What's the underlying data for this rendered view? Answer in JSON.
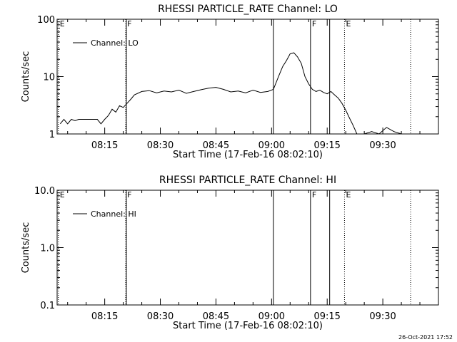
{
  "footer": {
    "stamp": "26-Oct-2021 17:52"
  },
  "chart_data": [
    {
      "type": "line",
      "title": "RHESSI PARTICLE_RATE Channel: LO",
      "xlabel": "Start Time (17-Feb-16 08:02:10)",
      "ylabel": "Counts/sec",
      "yscale": "log",
      "ylim": [
        1,
        100
      ],
      "yticks": [
        {
          "v": 1,
          "label": "1"
        },
        {
          "v": 10,
          "label": "10"
        },
        {
          "v": 100,
          "label": "100"
        }
      ],
      "xlim": [
        "08:02:10",
        "09:45:00"
      ],
      "xticks": [
        "08:15",
        "08:30",
        "08:45",
        "09:00",
        "09:15",
        "09:30"
      ],
      "legend": {
        "position": "top-left",
        "entry": "Channel: LO"
      },
      "markers": [
        {
          "t": "08:02:30",
          "label": "E",
          "style": "dotted"
        },
        {
          "t": "08:20:40",
          "label": "F",
          "style": "dotted"
        },
        {
          "t": "08:20:50",
          "label": "",
          "style": "solid"
        },
        {
          "t": "09:00:30",
          "label": "",
          "style": "solid"
        },
        {
          "t": "09:10:30",
          "label": "F",
          "style": "solid"
        },
        {
          "t": "09:15:40",
          "label": "",
          "style": "solid"
        },
        {
          "t": "09:19:40",
          "label": "E",
          "style": "dotted"
        },
        {
          "t": "09:37:30",
          "label": "",
          "style": "dotted"
        }
      ],
      "series": [
        {
          "x": [
            "08:03:00",
            "08:04:00",
            "08:05:00",
            "08:06:00",
            "08:07:00",
            "08:08:00",
            "08:09:00",
            "08:10:00",
            "08:11:00",
            "08:12:00",
            "08:13:00",
            "08:14:00",
            "08:15:00",
            "08:16:00",
            "08:17:00",
            "08:18:00",
            "08:19:00",
            "08:20:00",
            "08:21:00",
            "08:22:00",
            "08:23:00",
            "08:25:00",
            "08:27:00",
            "08:29:00",
            "08:31:00",
            "08:33:00",
            "08:35:00",
            "08:37:00",
            "08:39:00",
            "08:41:00",
            "08:43:00",
            "08:45:00",
            "08:47:00",
            "08:49:00",
            "08:51:00",
            "08:53:00",
            "08:55:00",
            "08:57:00",
            "08:59:00",
            "09:00:30",
            "09:02:00",
            "09:03:00",
            "09:04:00",
            "09:05:00",
            "09:06:00",
            "09:07:00",
            "09:08:00",
            "09:09:00",
            "09:10:00",
            "09:11:00",
            "09:12:00",
            "09:13:00",
            "09:14:00",
            "09:15:00",
            "09:16:00",
            "09:17:00",
            "09:18:00",
            "09:19:00",
            "09:20:00",
            "09:21:00",
            "09:22:00",
            "09:23:00",
            "09:24:00",
            "09:25:00",
            "09:27:00",
            "09:29:00",
            "09:31:00",
            "09:33:00",
            "09:35:00"
          ],
          "values": [
            1.5,
            1.8,
            1.5,
            1.8,
            1.7,
            1.8,
            1.8,
            1.8,
            1.8,
            1.8,
            1.8,
            1.5,
            1.8,
            2.1,
            2.7,
            2.4,
            3.1,
            2.9,
            3.4,
            4.0,
            4.8,
            5.5,
            5.7,
            5.2,
            5.6,
            5.4,
            5.8,
            5.1,
            5.5,
            5.9,
            6.3,
            6.5,
            6.0,
            5.4,
            5.6,
            5.2,
            5.8,
            5.3,
            5.5,
            6.0,
            10.5,
            15.0,
            19.0,
            25.0,
            26.0,
            22.0,
            17.0,
            10.0,
            7.5,
            6.0,
            5.5,
            5.8,
            5.3,
            5.0,
            5.5,
            4.8,
            4.2,
            3.4,
            2.6,
            1.9,
            1.4,
            1.0,
            1.0,
            1.0,
            1.1,
            1.0,
            1.3,
            1.1,
            1.0
          ]
        }
      ]
    },
    {
      "type": "line",
      "title": "RHESSI PARTICLE_RATE Channel: HI",
      "xlabel": "Start Time (17-Feb-16 08:02:10)",
      "ylabel": "Counts/sec",
      "yscale": "log",
      "ylim": [
        0.1,
        10
      ],
      "yticks": [
        {
          "v": 0.1,
          "label": "0.1"
        },
        {
          "v": 1,
          "label": "1.0"
        },
        {
          "v": 10,
          "label": "10.0"
        }
      ],
      "xlim": [
        "08:02:10",
        "09:45:00"
      ],
      "xticks": [
        "08:15",
        "08:30",
        "08:45",
        "09:00",
        "09:15",
        "09:30"
      ],
      "legend": {
        "position": "top-left",
        "entry": "Channel: HI"
      },
      "markers": [
        {
          "t": "08:02:30",
          "label": "E",
          "style": "dotted"
        },
        {
          "t": "08:20:40",
          "label": "F",
          "style": "dotted"
        },
        {
          "t": "08:20:50",
          "label": "",
          "style": "solid"
        },
        {
          "t": "09:00:30",
          "label": "",
          "style": "solid"
        },
        {
          "t": "09:10:30",
          "label": "F",
          "style": "solid"
        },
        {
          "t": "09:15:40",
          "label": "",
          "style": "solid"
        },
        {
          "t": "09:19:40",
          "label": "E",
          "style": "dotted"
        },
        {
          "t": "09:37:30",
          "label": "",
          "style": "dotted"
        }
      ],
      "series": [
        {
          "x": [],
          "values": []
        }
      ]
    }
  ]
}
